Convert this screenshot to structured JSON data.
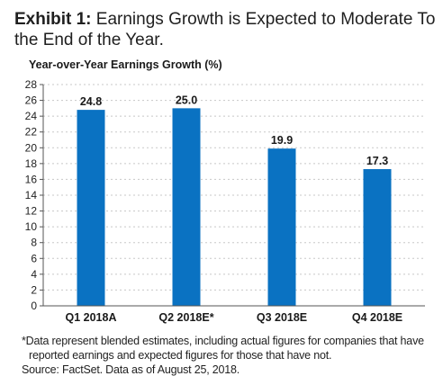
{
  "header": {
    "prefix": "Exhibit 1:",
    "title": "Earnings Growth is Expected to Moderate To the End of the Year."
  },
  "chart_data": {
    "type": "bar",
    "title": "Year-over-Year Earnings Growth (%)",
    "xlabel": "",
    "ylabel": "",
    "categories": [
      "Q1 2018A",
      "Q2 2018E*",
      "Q3 2018E",
      "Q4 2018E"
    ],
    "values": [
      24.8,
      25.0,
      19.9,
      17.3
    ],
    "data_labels": [
      "24.8",
      "25.0",
      "19.9",
      "17.3"
    ],
    "ylim": [
      0,
      28
    ],
    "yticks": [
      0,
      2,
      4,
      6,
      8,
      10,
      12,
      14,
      16,
      18,
      20,
      22,
      24,
      26,
      28
    ],
    "grid": true,
    "legend": "none",
    "bar_color": "#0a72c2",
    "grid_color": "#c8c8c8"
  },
  "footnote": {
    "line1": "*Data represent blended estimates, including actual figures for companies that have",
    "line2": "reported earnings and expected figures for those that have not.",
    "source": "Source: FactSet. Data as of August 25, 2018."
  }
}
